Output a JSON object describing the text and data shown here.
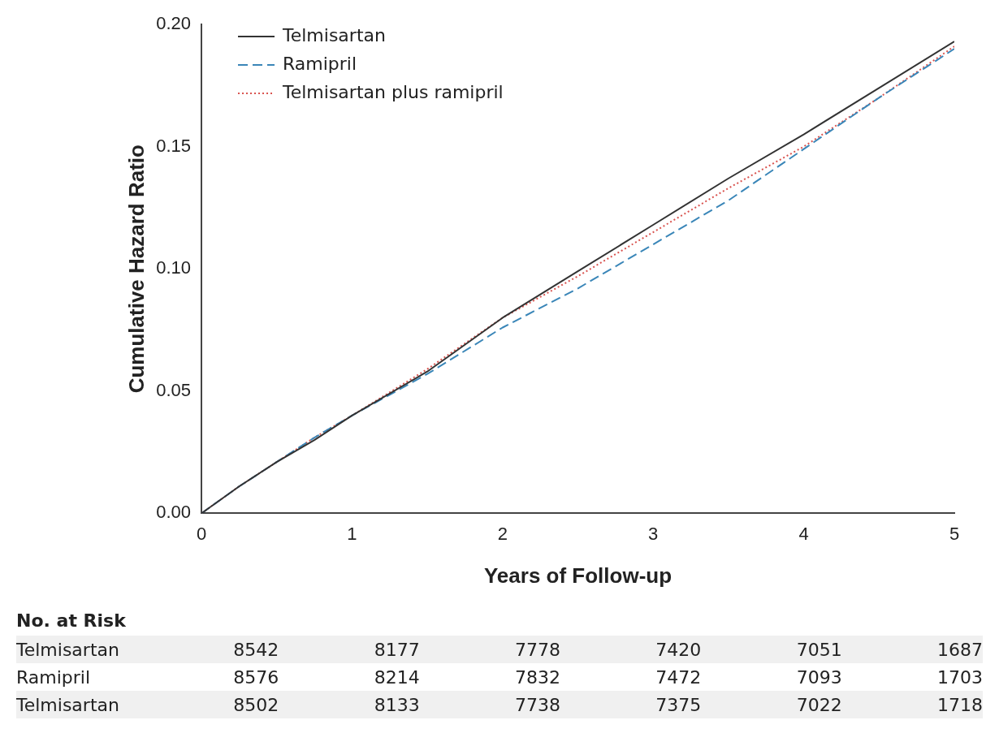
{
  "chart_data": {
    "type": "line",
    "xlabel": "Years of Follow-up",
    "ylabel": "Cumulative Hazard Ratio",
    "x": [
      0,
      0.25,
      0.5,
      0.75,
      1,
      1.5,
      2,
      2.5,
      3,
      3.5,
      4,
      4.5,
      5
    ],
    "series": [
      {
        "name": "Telmisartan",
        "color": "#333333",
        "line_style": "solid",
        "values": [
          0,
          0.011,
          0.021,
          0.03,
          0.04,
          0.058,
          0.08,
          0.099,
          0.118,
          0.137,
          0.155,
          0.174,
          0.193
        ]
      },
      {
        "name": "Ramipril",
        "color": "#3a86b8",
        "line_style": "dashed",
        "values": [
          0,
          0.011,
          0.021,
          0.031,
          0.04,
          0.057,
          0.076,
          0.092,
          0.11,
          0.128,
          0.149,
          0.17,
          0.19
        ]
      },
      {
        "name": "Telmisartan plus ramipril",
        "color": "#d9534f",
        "line_style": "dotted",
        "values": [
          0,
          0.011,
          0.021,
          0.031,
          0.04,
          0.059,
          0.08,
          0.097,
          0.115,
          0.133,
          0.15,
          0.17,
          0.191
        ]
      }
    ],
    "xlim": [
      0,
      5
    ],
    "xticks": [
      0,
      1,
      2,
      3,
      4,
      5
    ],
    "ylim": [
      0,
      0.2
    ],
    "yticks": [
      {
        "value": 0,
        "label": "0.00"
      },
      {
        "value": 0.05,
        "label": "0.05"
      },
      {
        "value": 0.1,
        "label": "0.10"
      },
      {
        "value": 0.15,
        "label": "0.15"
      },
      {
        "value": 0.2,
        "label": "0.20"
      }
    ],
    "grid": false,
    "legend": "top left",
    "marker": "none",
    "annotations": [
      "No. at Risk",
      "Telmisartan\t8542\t8177\t7778\t7420\t7051\t1687",
      "Ramipril\t8576\t8214\t7832\t7472\t7093\t1703",
      "Telmisartan\t8502\t8133\t7738\t7375\t7022\t1718"
    ]
  }
}
